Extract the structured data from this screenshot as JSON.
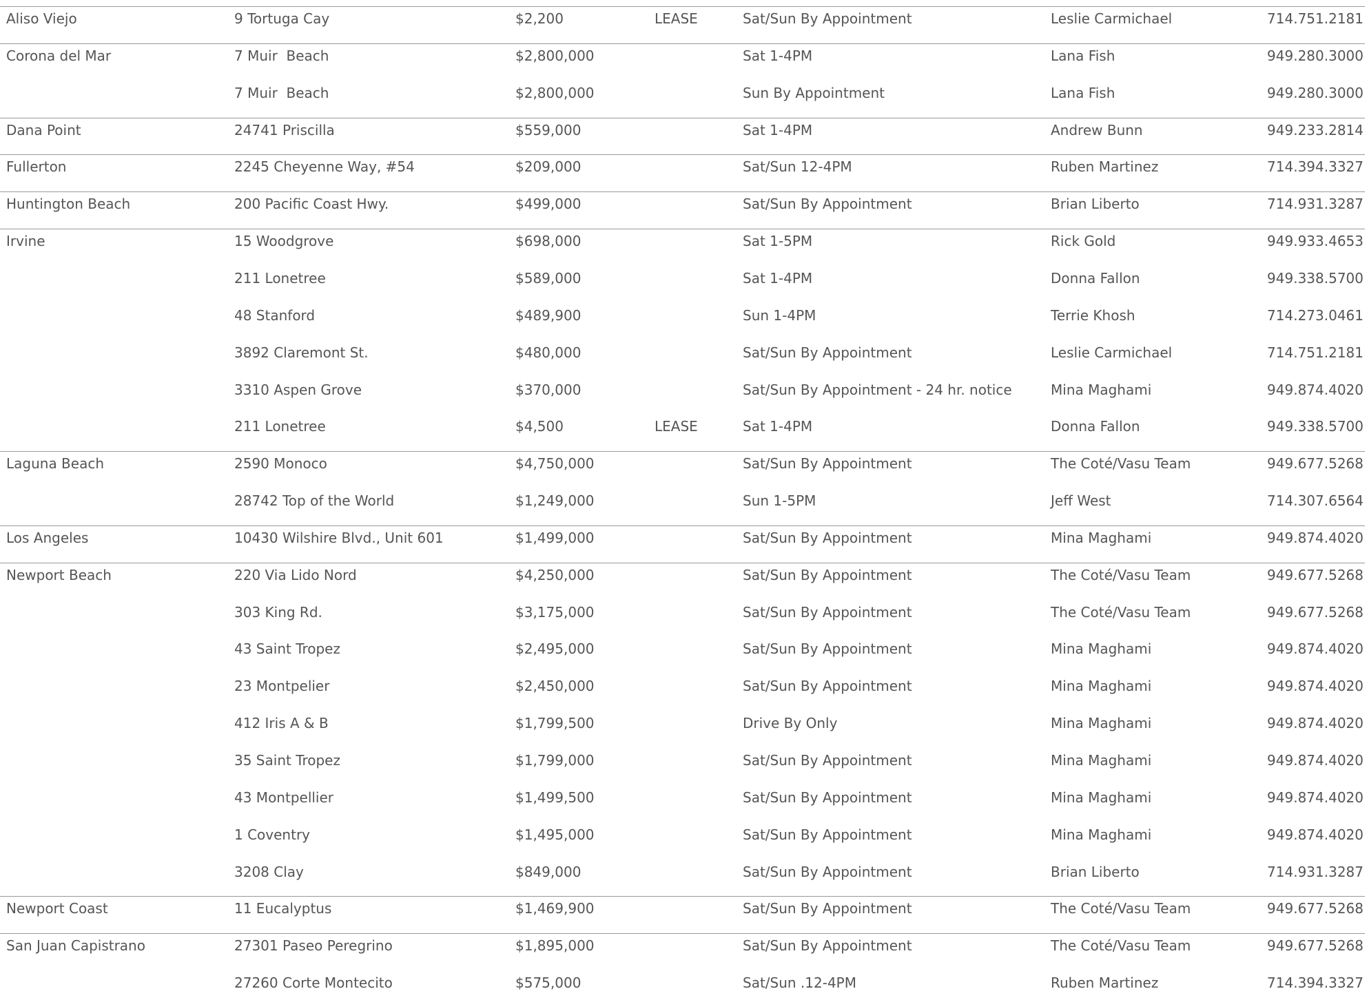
{
  "groups": [
    {
      "city": "Aliso Viejo",
      "listings": [
        {
          "address": "9 Tortuga Cay",
          "price": "$2,200",
          "type": "LEASE",
          "hours": "Sat/Sun By Appointment",
          "agent": "Leslie Carmichael",
          "phone": "714.751.2181"
        }
      ]
    },
    {
      "city": "Corona del Mar",
      "listings": [
        {
          "address": "7 Muir  Beach",
          "price": "$2,800,000",
          "hours": "Sat 1-4PM",
          "agent": "Lana Fish",
          "phone": "949.280.3000"
        },
        {
          "address": "7 Muir  Beach",
          "price": "$2,800,000",
          "hours": "Sun By Appointment",
          "agent": "Lana Fish",
          "phone": "949.280.3000"
        }
      ]
    },
    {
      "city": "Dana Point",
      "listings": [
        {
          "address": "24741 Priscilla",
          "price": "$559,000",
          "hours": "Sat 1-4PM",
          "agent": "Andrew Bunn",
          "phone": "949.233.2814"
        }
      ]
    },
    {
      "city": "Fullerton",
      "listings": [
        {
          "address": "2245 Cheyenne Way, #54",
          "price": "$209,000",
          "hours": "Sat/Sun 12-4PM",
          "agent": "Ruben Martinez",
          "phone": "714.394.3327"
        }
      ]
    },
    {
      "city": "Huntington Beach",
      "listings": [
        {
          "address": "200 Pacific Coast Hwy.",
          "price": "$499,000",
          "hours": "Sat/Sun By Appointment",
          "agent": "Brian Liberto",
          "phone": "714.931.3287"
        }
      ]
    },
    {
      "city": "Irvine",
      "listings": [
        {
          "address": "15 Woodgrove",
          "price": "$698,000",
          "hours": "Sat 1-5PM",
          "agent": "Rick Gold",
          "phone": "949.933.4653"
        },
        {
          "address": "211 Lonetree",
          "price": "$589,000",
          "hours": "Sat 1-4PM",
          "agent": "Donna Fallon",
          "phone": "949.338.5700"
        },
        {
          "address": "48 Stanford",
          "price": "$489,900",
          "hours": "Sun 1-4PM",
          "agent": "Terrie Khosh",
          "phone": "714.273.0461"
        },
        {
          "address": "3892 Claremont St.",
          "price": "$480,000",
          "hours": "Sat/Sun By Appointment",
          "agent": "Leslie Carmichael",
          "phone": "714.751.2181"
        },
        {
          "address": "3310 Aspen Grove",
          "price": "$370,000",
          "hours": "Sat/Sun By Appointment - 24 hr. notice",
          "agent": "Mina Maghami",
          "phone": "949.874.4020"
        },
        {
          "address": "211 Lonetree",
          "price": "$4,500",
          "type": "LEASE",
          "hours": "Sat 1-4PM",
          "agent": "Donna Fallon",
          "phone": "949.338.5700"
        }
      ]
    },
    {
      "city": "Laguna Beach",
      "listings": [
        {
          "address": "2590 Monoco",
          "price": "$4,750,000",
          "hours": "Sat/Sun By Appointment",
          "agent": "The Coté/Vasu Team",
          "phone": "949.677.5268"
        },
        {
          "address": "28742 Top of the World",
          "price": "$1,249,000",
          "hours": "Sun 1-5PM",
          "agent": "Jeff West",
          "phone": "714.307.6564"
        }
      ]
    },
    {
      "city": "Los Angeles",
      "listings": [
        {
          "address": "10430 Wilshire Blvd., Unit 601",
          "price": "$1,499,000",
          "hours": "Sat/Sun By Appointment",
          "agent": "Mina Maghami",
          "phone": "949.874.4020"
        }
      ]
    },
    {
      "city": "Newport Beach",
      "listings": [
        {
          "address": "220 Via Lido Nord",
          "price": "$4,250,000",
          "hours": "Sat/Sun By Appointment",
          "agent": "The Coté/Vasu Team",
          "phone": "949.677.5268"
        },
        {
          "address": "303 King Rd.",
          "price": "$3,175,000",
          "hours": "Sat/Sun By Appointment",
          "agent": "The Coté/Vasu Team",
          "phone": "949.677.5268"
        },
        {
          "address": "43 Saint Tropez",
          "price": "$2,495,000",
          "hours": "Sat/Sun By Appointment",
          "agent": "Mina Maghami",
          "phone": "949.874.4020"
        },
        {
          "address": "23 Montpelier",
          "price": "$2,450,000",
          "hours": "Sat/Sun By Appointment",
          "agent": "Mina Maghami",
          "phone": "949.874.4020"
        },
        {
          "address": "412 Iris A & B",
          "price": "$1,799,500",
          "hours": "Drive By Only",
          "agent": "Mina Maghami",
          "phone": "949.874.4020"
        },
        {
          "address": "35 Saint Tropez",
          "price": "$1,799,000",
          "hours": "Sat/Sun By Appointment",
          "agent": "Mina Maghami",
          "phone": "949.874.4020"
        },
        {
          "address": "43 Montpellier",
          "price": "$1,499,500",
          "hours": "Sat/Sun By Appointment",
          "agent": "Mina Maghami",
          "phone": "949.874.4020"
        },
        {
          "address": "1 Coventry",
          "price": "$1,495,000",
          "hours": "Sat/Sun By Appointment",
          "agent": "Mina Maghami",
          "phone": "949.874.4020"
        },
        {
          "address": "3208 Clay",
          "price": "$849,000",
          "hours": "Sat/Sun By Appointment",
          "agent": "Brian Liberto",
          "phone": "714.931.3287"
        }
      ]
    },
    {
      "city": "Newport Coast",
      "listings": [
        {
          "address": "11 Eucalyptus",
          "price": "$1,469,900",
          "hours": "Sat/Sun By Appointment",
          "agent": "The Coté/Vasu Team",
          "phone": "949.677.5268"
        }
      ]
    },
    {
      "city": "San Juan Capistrano",
      "listings": [
        {
          "address": "27301 Paseo Peregrino",
          "price": "$1,895,000",
          "hours": "Sat/Sun By Appointment",
          "agent": "The Coté/Vasu Team",
          "phone": "949.677.5268"
        },
        {
          "address": "27260 Corte Montecito",
          "price": "$575,000",
          "hours": "Sat/Sun .12-4PM",
          "agent": "Ruben Martinez",
          "phone": "714.394.3327"
        }
      ]
    }
  ]
}
